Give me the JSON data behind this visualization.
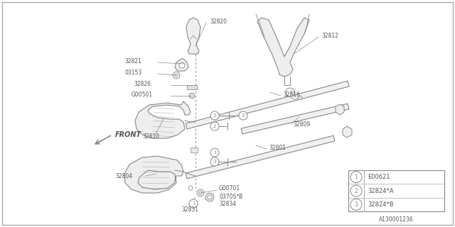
{
  "bg_color": "#ffffff",
  "line_color": "#888888",
  "label_color": "#555555",
  "dark_line": "#666666",
  "legend_items": [
    {
      "num": "1",
      "text": "E00621"
    },
    {
      "num": "2",
      "text": "32824*A"
    },
    {
      "num": "3",
      "text": "32824*B"
    }
  ],
  "diagram_id": "A130001236",
  "front_label": "FRONT"
}
